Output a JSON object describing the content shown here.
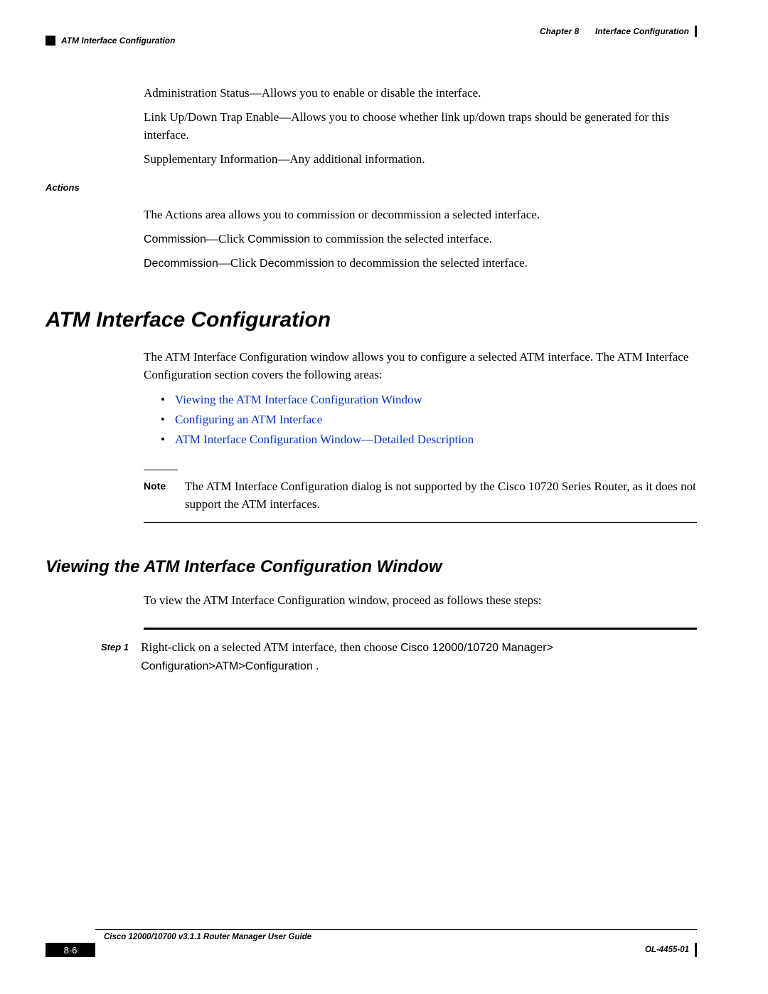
{
  "header": {
    "chapter": "Chapter 8",
    "title": "Interface Configuration"
  },
  "section_marker": "ATM Interface Configuration",
  "intro": {
    "p1": "Administration Status—Allows you to enable or disable the interface.",
    "p2": "Link Up/Down Trap Enable—Allows you to choose whether link up/down traps should be generated for this interface.",
    "p3": "Supplementary Information—Any additional information."
  },
  "actions": {
    "label": "Actions",
    "para": "The Actions area allows you to commission or decommission a selected interface.",
    "commission_pre": "Commission",
    "commission_mid": "—Click ",
    "commission_bold": "Commission",
    "commission_post": " to commission the selected interface.",
    "decommission_pre": "Decommission",
    "decommission_mid": "—Click ",
    "decommission_bold": "Decommission",
    "decommission_post": " to decommission the selected interface."
  },
  "h1": "ATM Interface Configuration",
  "atm_intro": "The ATM Interface Configuration window allows you to configure a selected ATM interface. The ATM Interface Configuration section covers the following areas:",
  "bullets": [
    "Viewing the ATM Interface Configuration Window",
    "Configuring an ATM Interface",
    "ATM Interface Configuration Window—Detailed Description"
  ],
  "note": {
    "label": "Note",
    "text": "The ATM Interface Configuration dialog is not supported by the Cisco 10720 Series Router, as it does not support the ATM interfaces."
  },
  "h2": "Viewing the ATM Interface Configuration Window",
  "view_para": "To view the ATM Interface Configuration window, proceed as follows these steps:",
  "step": {
    "label": "Step 1",
    "pre": "Right-click on a selected ATM interface, then choose ",
    "bold1": "Cisco 12000/10720 Manager> Configuration>ATM>Configuration",
    "post": " ."
  },
  "footer": {
    "guide": "Cisco 12000/10700 v3.1.1 Router Manager User Guide",
    "page": "8-6",
    "docid": "OL-4455-01"
  }
}
